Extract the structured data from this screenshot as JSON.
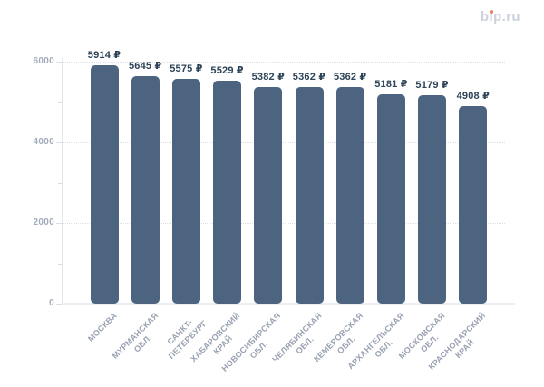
{
  "logo": {
    "full_text": "bip.ru",
    "part_b": "b",
    "part_i_stem": "ı",
    "part_rest": "p.ru",
    "text_color": "#ccd1de",
    "dot_color": "#ee7e61"
  },
  "chart_data": {
    "type": "bar",
    "title": "",
    "categories": [
      "МОСКВА",
      "МУРМАНСКАЯ\nОБЛ.",
      "САНКТ-\nПЕТЕРБУРГ",
      "ХАБАРОВСКИЙ\nКРАЙ",
      "НОВОСИБИРСКАЯ\nОБЛ.",
      "ЧЕЛЯБИНСКАЯ\nОБЛ.",
      "КЕМЕРОВСКАЯ\nОБЛ.",
      "АРХАНГЕЛЬСКАЯ\nОБЛ.",
      "МОСКОВСКАЯ\nОБЛ.",
      "КРАСНОДАРСКИЙ\nКРАЙ"
    ],
    "values": [
      5914,
      5645,
      5575,
      5529,
      5382,
      5362,
      5362,
      5181,
      5179,
      4908
    ],
    "value_labels": [
      "5914 ₽",
      "5645 ₽",
      "5575 ₽",
      "5529 ₽",
      "5382 ₽",
      "5362 ₽",
      "5362 ₽",
      "5181 ₽",
      "5179 ₽",
      "4908 ₽"
    ],
    "currency_suffix": "₽",
    "xlabel": "",
    "ylabel": "",
    "ylim": [
      0,
      6000
    ],
    "yticks_major": [
      0,
      2000,
      4000,
      6000
    ],
    "yticks_minor": [
      1000,
      3000,
      5000
    ],
    "ytick_labels": [
      "0",
      "2000",
      "4000",
      "6000"
    ],
    "grid": "horizontal dotted lines at major ticks",
    "legend": "none",
    "bar_color": "#4c6480",
    "value_label_color": "#2d4357",
    "axis_label_color": "#a3abba",
    "grid_color": "#dce1e9"
  }
}
